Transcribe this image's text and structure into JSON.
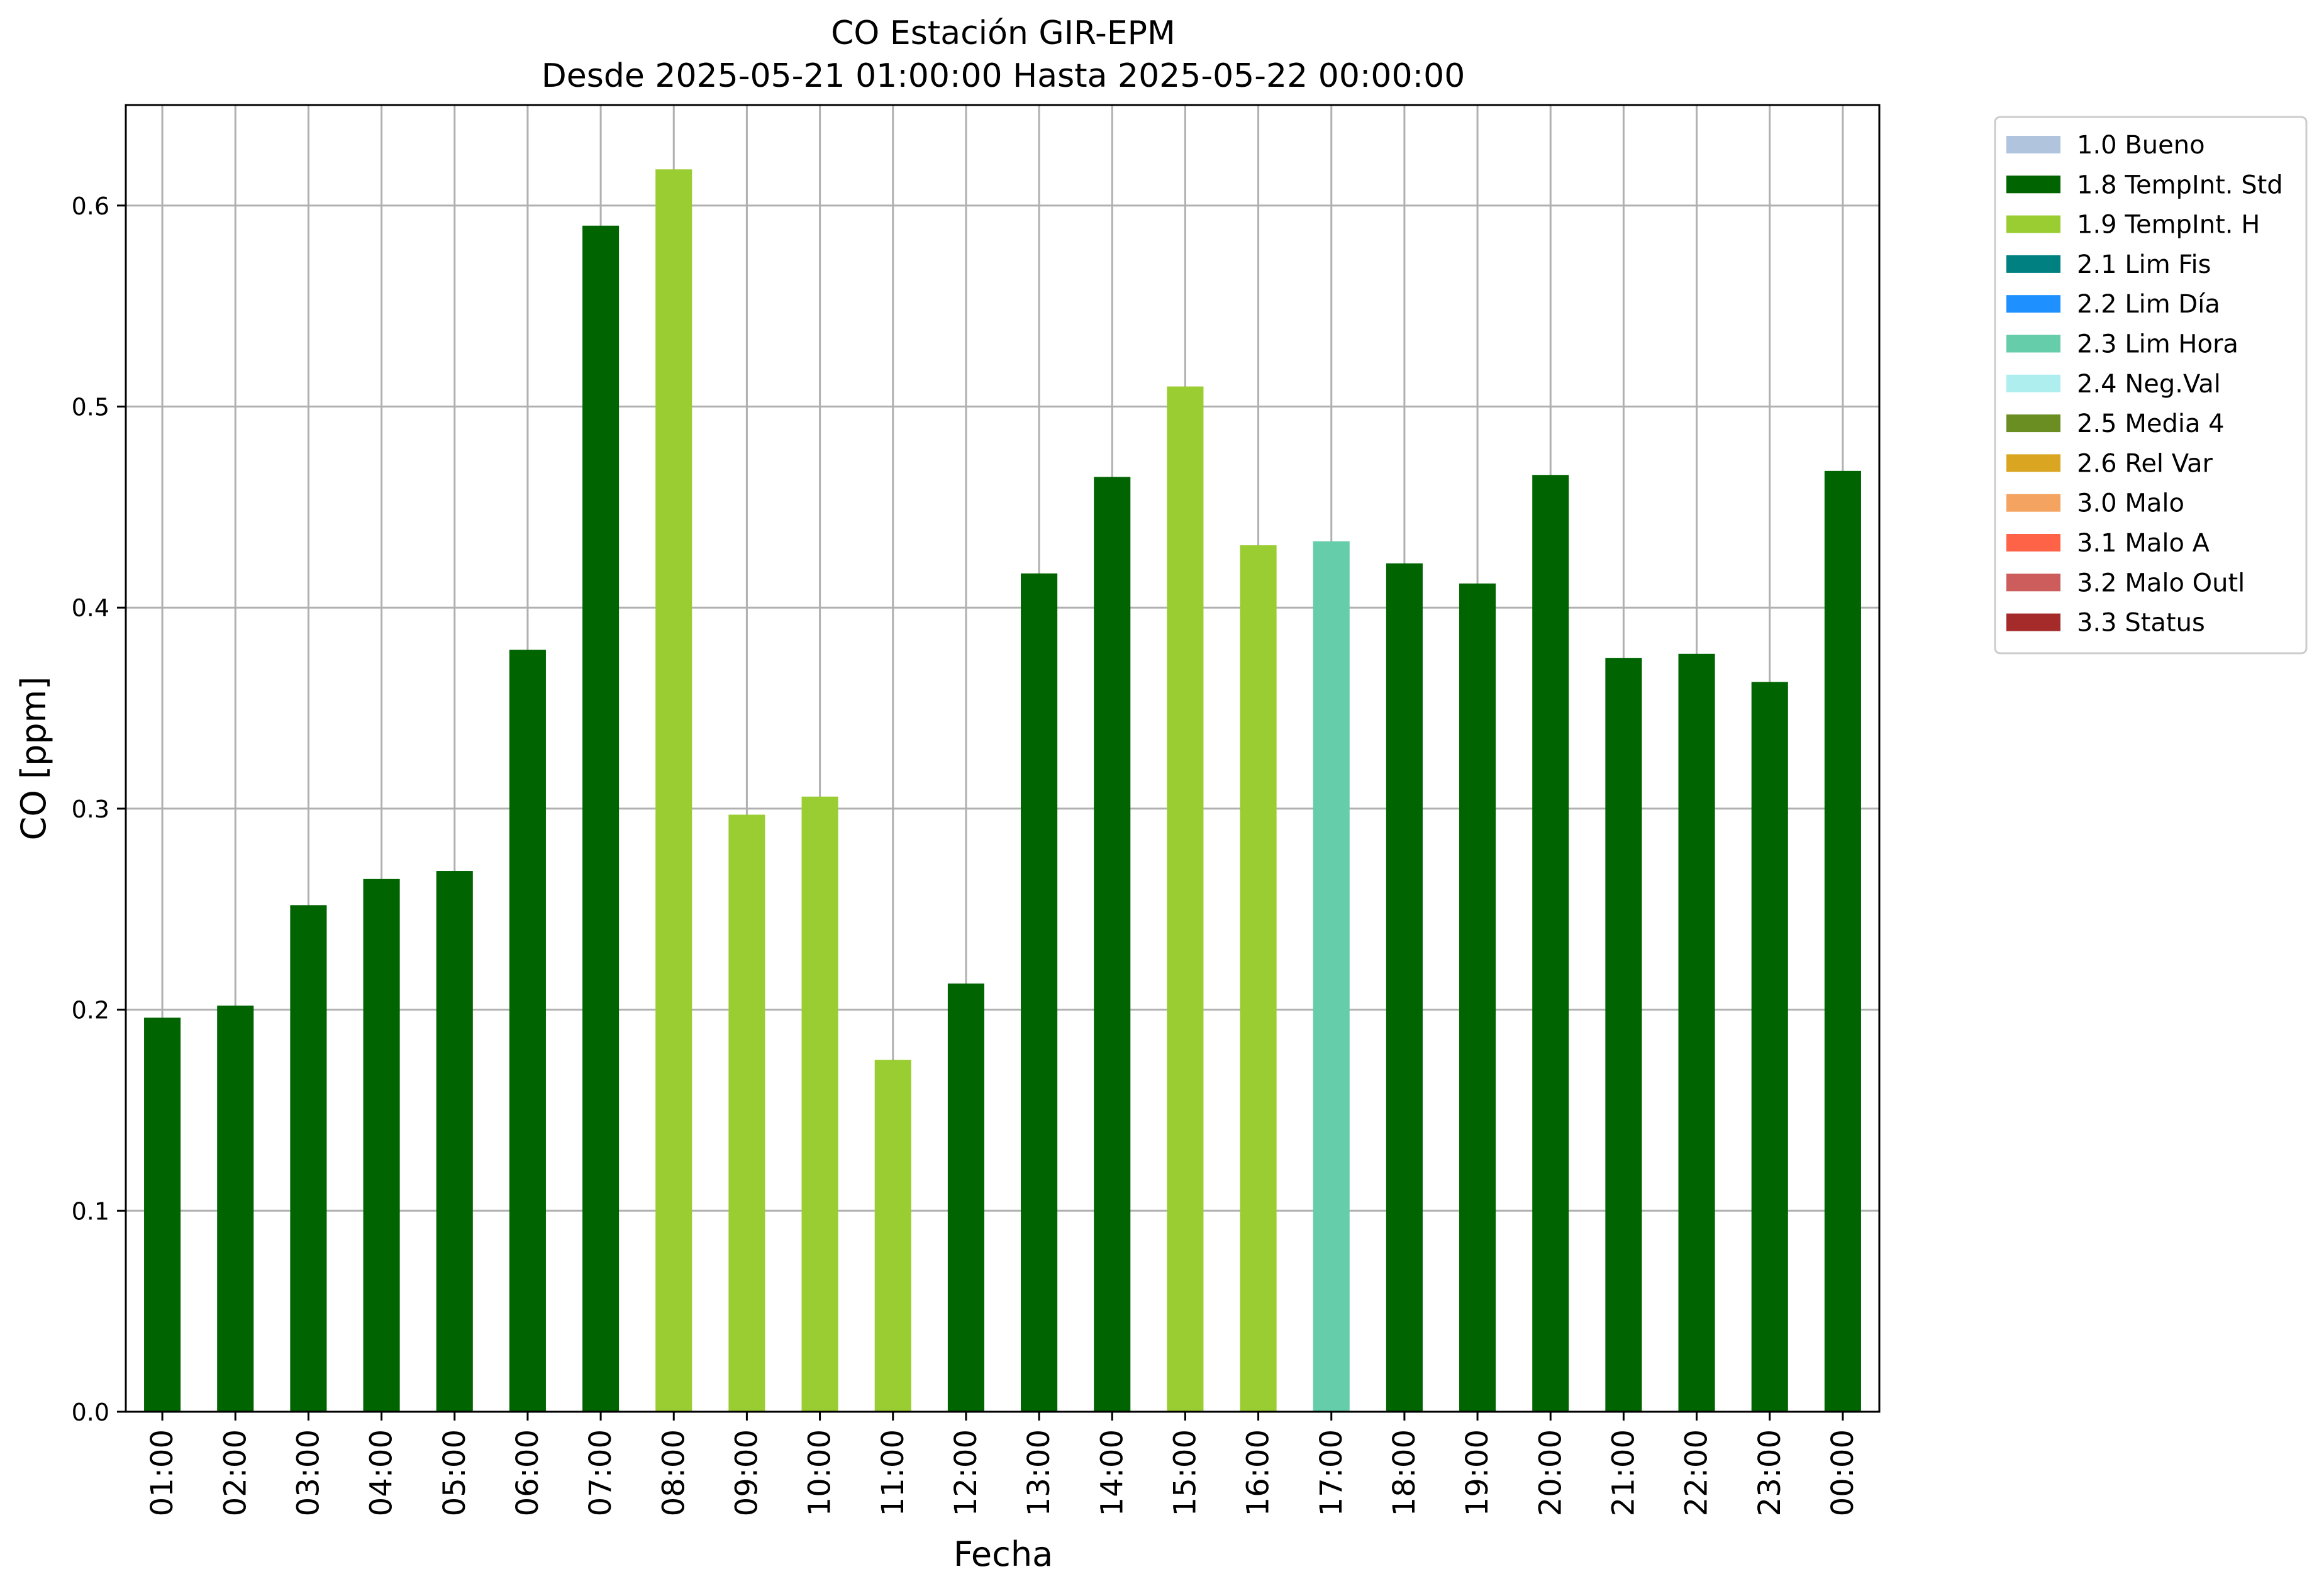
{
  "chart_data": {
    "type": "bar",
    "title": "CO Estación GIR-EPM",
    "subtitle": "Desde 2025-05-21 01:00:00 Hasta 2025-05-22 00:00:00",
    "xlabel": "Fecha",
    "ylabel": "CO [ppm]",
    "ylim": [
      0,
      0.65
    ],
    "yticks": [
      "0.0",
      "0.1",
      "0.2",
      "0.3",
      "0.4",
      "0.5",
      "0.6"
    ],
    "grid": true,
    "legend_position": "outside-right-top",
    "categories": [
      "01:00",
      "02:00",
      "03:00",
      "04:00",
      "05:00",
      "06:00",
      "07:00",
      "08:00",
      "09:00",
      "10:00",
      "11:00",
      "12:00",
      "13:00",
      "14:00",
      "15:00",
      "16:00",
      "17:00",
      "18:00",
      "19:00",
      "20:00",
      "21:00",
      "22:00",
      "23:00",
      "00:00"
    ],
    "values": [
      0.196,
      0.202,
      0.252,
      0.265,
      0.269,
      0.379,
      0.59,
      0.618,
      0.297,
      0.306,
      0.175,
      0.213,
      0.417,
      0.465,
      0.51,
      0.431,
      0.433,
      0.422,
      0.412,
      0.466,
      0.375,
      0.377,
      0.363,
      0.468
    ],
    "flags": [
      "1.8",
      "1.8",
      "1.8",
      "1.8",
      "1.8",
      "1.8",
      "1.8",
      "1.9",
      "1.9",
      "1.9",
      "1.9",
      "1.8",
      "1.8",
      "1.8",
      "1.9",
      "1.9",
      "2.3",
      "1.8",
      "1.8",
      "1.8",
      "1.8",
      "1.8",
      "1.8",
      "1.8"
    ],
    "legend": [
      {
        "key": "1.0",
        "label": "1.0 Bueno",
        "color": "#b0c4de"
      },
      {
        "key": "1.8",
        "label": "1.8 TempInt. Std",
        "color": "#006400"
      },
      {
        "key": "1.9",
        "label": "1.9 TempInt. H",
        "color": "#9acd32"
      },
      {
        "key": "2.1",
        "label": "2.1 Lim Fis",
        "color": "#008080"
      },
      {
        "key": "2.2",
        "label": "2.2 Lim Día",
        "color": "#1e90ff"
      },
      {
        "key": "2.3",
        "label": "2.3 Lim Hora",
        "color": "#66cdaa"
      },
      {
        "key": "2.4",
        "label": "2.4 Neg.Val",
        "color": "#afeeee"
      },
      {
        "key": "2.5",
        "label": "2.5 Media 4",
        "color": "#6b8e23"
      },
      {
        "key": "2.6",
        "label": "2.6 Rel Var",
        "color": "#daa520"
      },
      {
        "key": "3.0",
        "label": "3.0 Malo",
        "color": "#f4a460"
      },
      {
        "key": "3.1",
        "label": "3.1 Malo A",
        "color": "#ff6347"
      },
      {
        "key": "3.2",
        "label": "3.2 Malo Outl",
        "color": "#cd5c5c"
      },
      {
        "key": "3.3",
        "label": "3.3 Status",
        "color": "#a52a2a"
      }
    ]
  }
}
